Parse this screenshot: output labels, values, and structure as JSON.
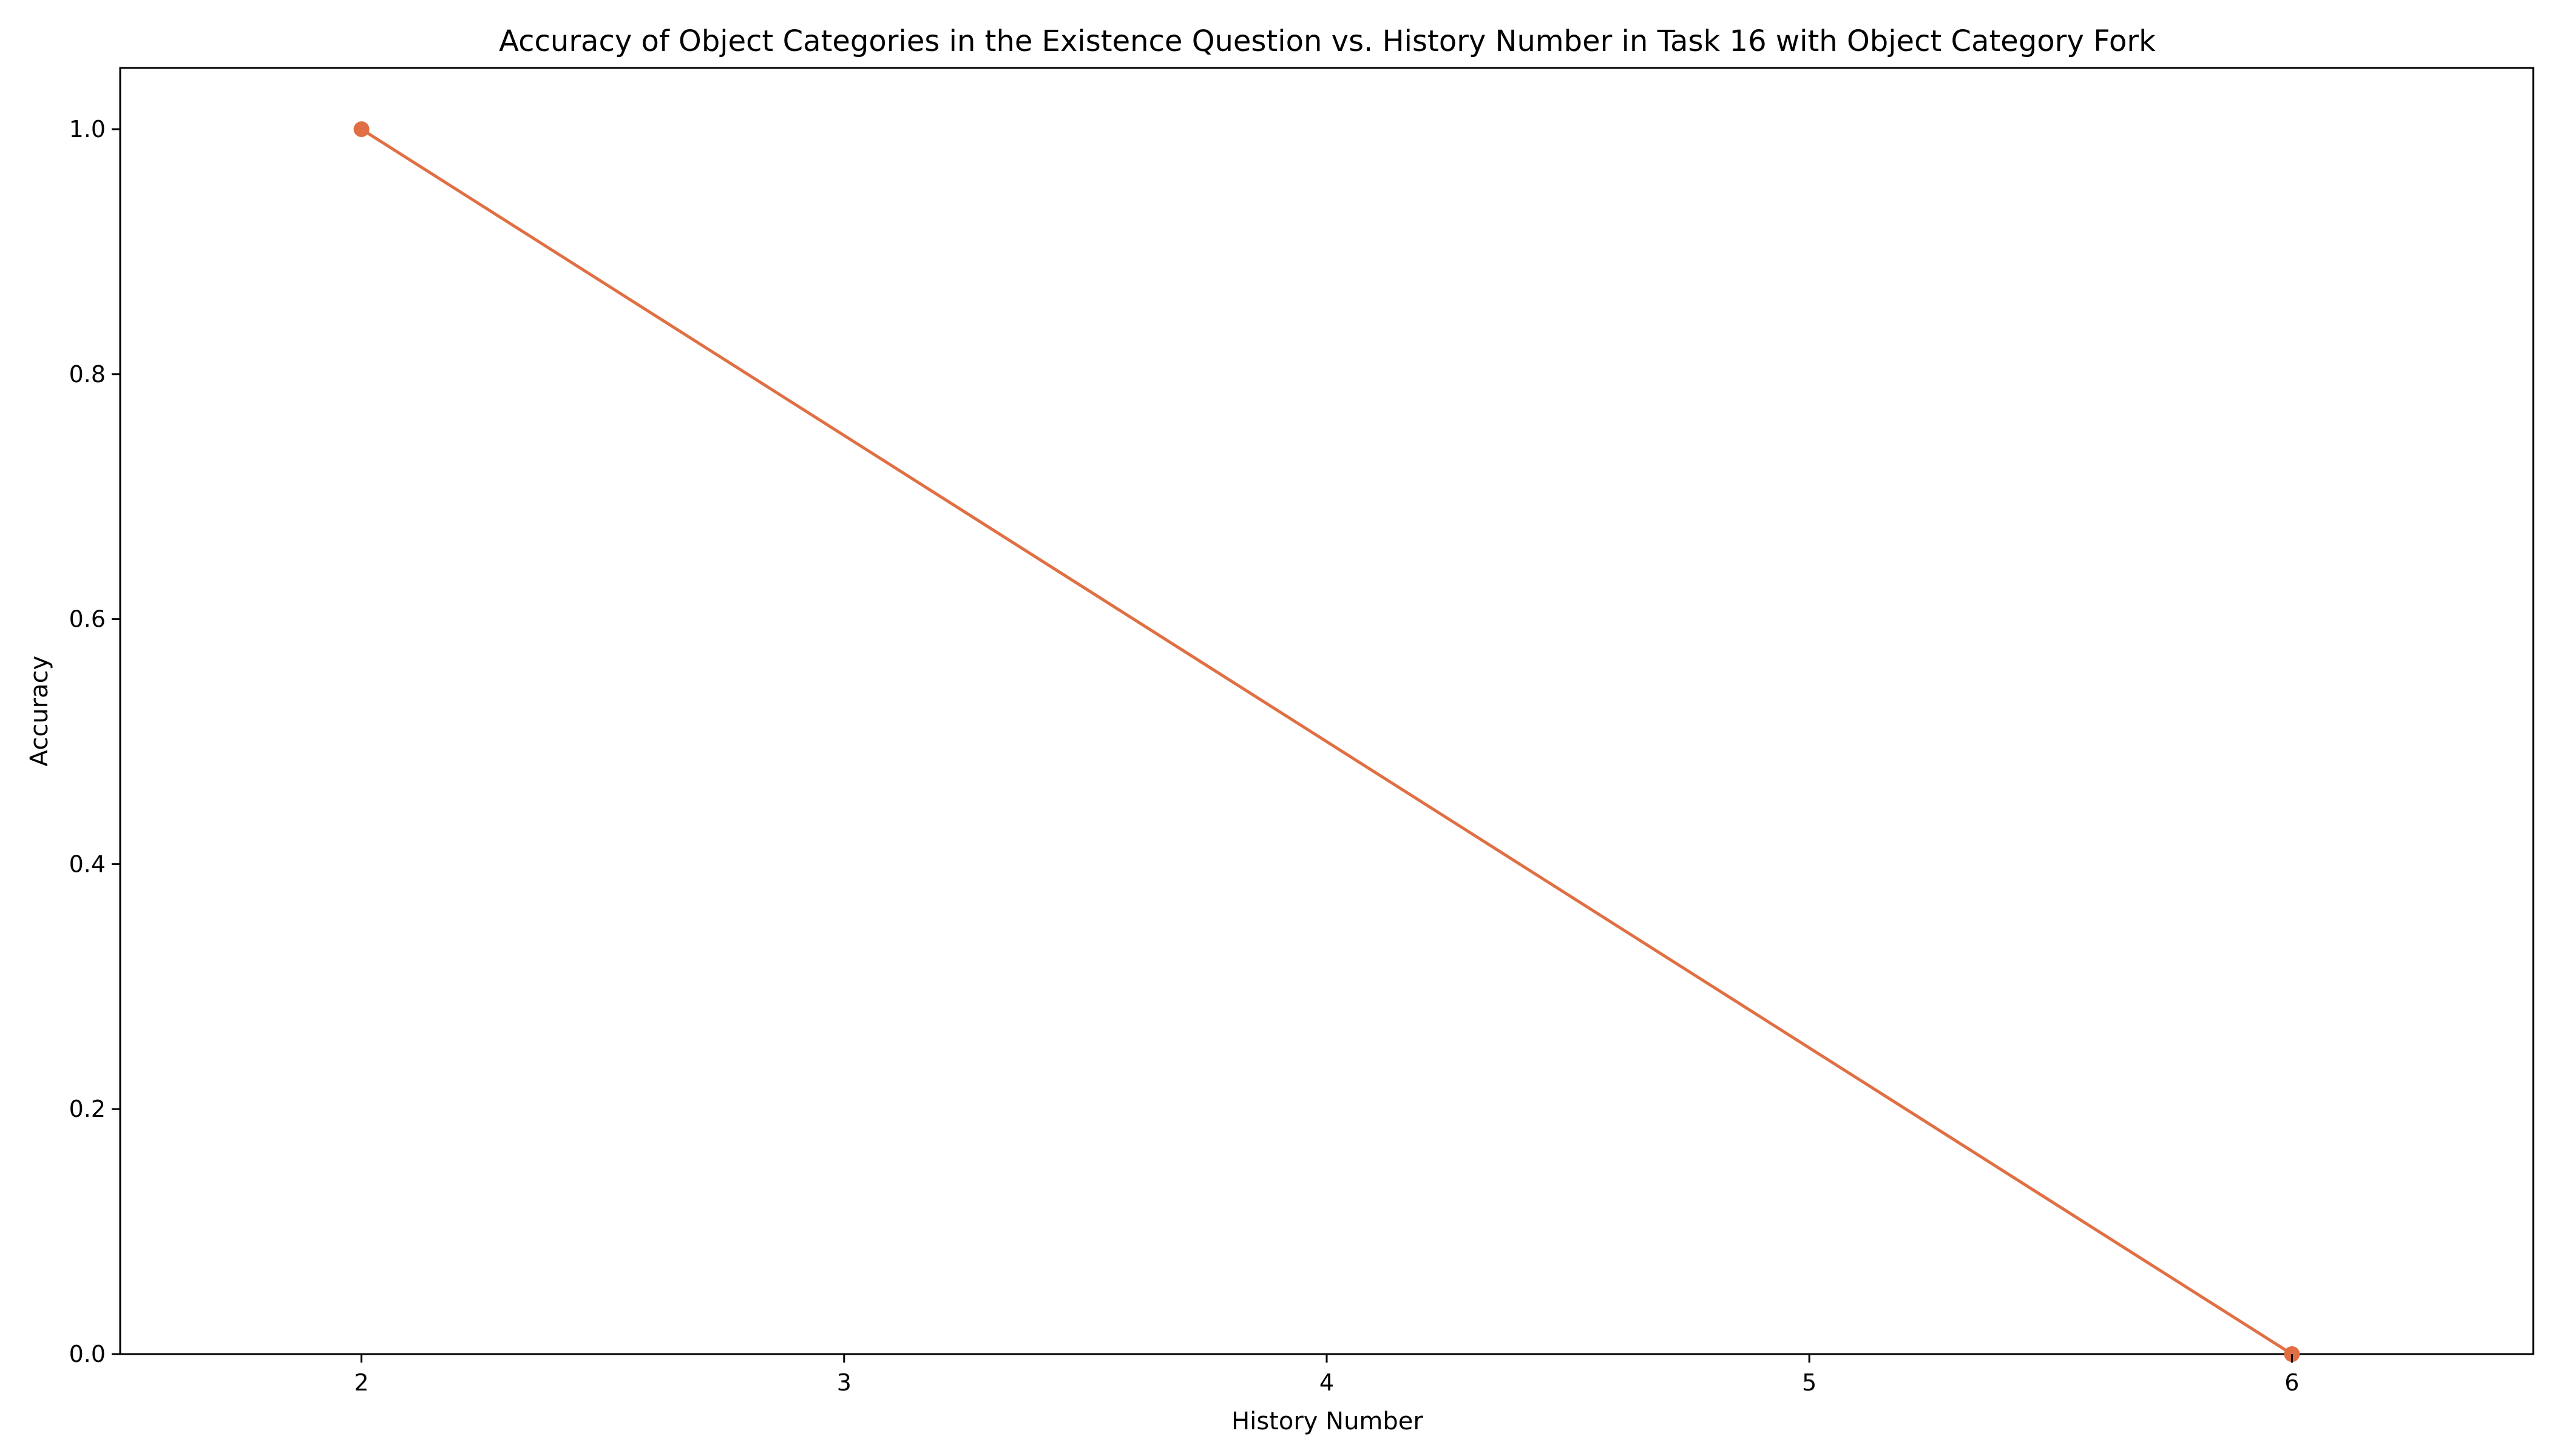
{
  "chart_data": {
    "type": "line",
    "title": "Accuracy of Object Categories in the Existence Question vs. History Number in Task 16 with Object Category Fork",
    "xlabel": "History Number",
    "ylabel": "Accuracy",
    "x": [
      2,
      6
    ],
    "series": [
      {
        "values": [
          1.0,
          0.0
        ],
        "color": "#e07044"
      }
    ],
    "xlim": [
      1.5,
      6.5
    ],
    "ylim": [
      0.0,
      1.05
    ],
    "xticks": [
      2,
      3,
      4,
      5,
      6
    ],
    "xtick_labels": [
      "2",
      "3",
      "4",
      "5",
      "6"
    ],
    "yticks": [
      0.0,
      0.2,
      0.4,
      0.6,
      0.8,
      1.0
    ],
    "ytick_labels": [
      "0.0",
      "0.2",
      "0.4",
      "0.6",
      "0.8",
      "1.0"
    ],
    "grid": false,
    "marker": "circle"
  }
}
